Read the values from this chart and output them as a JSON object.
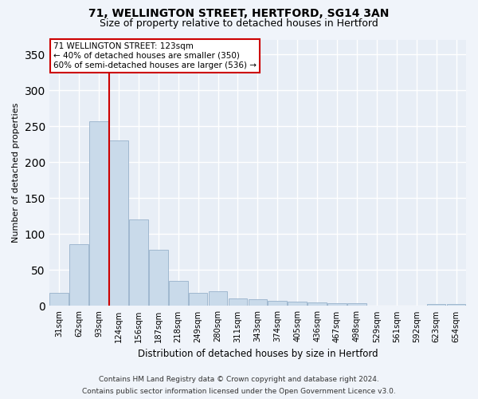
{
  "title1": "71, WELLINGTON STREET, HERTFORD, SG14 3AN",
  "title2": "Size of property relative to detached houses in Hertford",
  "xlabel": "Distribution of detached houses by size in Hertford",
  "ylabel": "Number of detached properties",
  "bins": [
    "31sqm",
    "62sqm",
    "93sqm",
    "124sqm",
    "156sqm",
    "187sqm",
    "218sqm",
    "249sqm",
    "280sqm",
    "311sqm",
    "343sqm",
    "374sqm",
    "405sqm",
    "436sqm",
    "467sqm",
    "498sqm",
    "529sqm",
    "561sqm",
    "592sqm",
    "623sqm",
    "654sqm"
  ],
  "values": [
    18,
    86,
    257,
    230,
    120,
    78,
    35,
    18,
    20,
    10,
    9,
    7,
    6,
    5,
    4,
    4,
    1,
    0,
    0,
    3,
    3
  ],
  "bar_color": "#c9daea",
  "bar_edge_color": "#a0b8d0",
  "vline_color": "#cc0000",
  "annotation_text": "71 WELLINGTON STREET: 123sqm\n← 40% of detached houses are smaller (350)\n60% of semi-detached houses are larger (536) →",
  "annotation_box_color": "#ffffff",
  "annotation_box_edge": "#cc0000",
  "bg_color": "#e8eef6",
  "grid_color": "#ffffff",
  "footer1": "Contains HM Land Registry data © Crown copyright and database right 2024.",
  "footer2": "Contains public sector information licensed under the Open Government Licence v3.0.",
  "ylim": [
    0,
    370
  ],
  "yticks": [
    0,
    50,
    100,
    150,
    200,
    250,
    300,
    350
  ],
  "fig_bg": "#f0f4fa"
}
